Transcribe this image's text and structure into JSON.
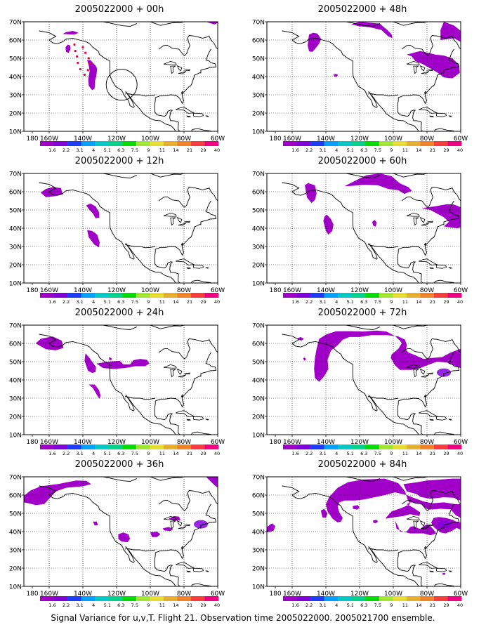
{
  "panels": [
    {
      "title": "2005022000 + 00h"
    },
    {
      "title": "2005022000 + 48h"
    },
    {
      "title": "2005022000 + 12h"
    },
    {
      "title": "2005022000 + 60h"
    },
    {
      "title": "2005022000 + 24h"
    },
    {
      "title": "2005022000 + 72h"
    },
    {
      "title": "2005022000 + 36h"
    },
    {
      "title": "2005022000 + 84h"
    }
  ],
  "axes": {
    "lat_labels": [
      "70N",
      "60N",
      "50N",
      "40N",
      "30N",
      "20N",
      "10N"
    ],
    "lon_labels": [
      "180",
      "160W",
      "140W",
      "120W",
      "100W",
      "80W",
      "60W"
    ]
  },
  "colorbar": {
    "labels": [
      "1.6",
      "2.2",
      "3.1",
      "4",
      "5.1",
      "6.3",
      "7.5",
      "9",
      "11",
      "14",
      "21",
      "29",
      "40"
    ],
    "colors": [
      "#a000c8",
      "#8200dc",
      "#1e3cff",
      "#00a0ff",
      "#00c8c8",
      "#00d28c",
      "#00dc00",
      "#a0e632",
      "#e6dc32",
      "#e6af2d",
      "#f08228",
      "#fa3c3c",
      "#f00082"
    ]
  },
  "caption": "Signal Variance for u,v,T. Flight 21. Observation time 2005022000. 2005021700 ensemble."
}
